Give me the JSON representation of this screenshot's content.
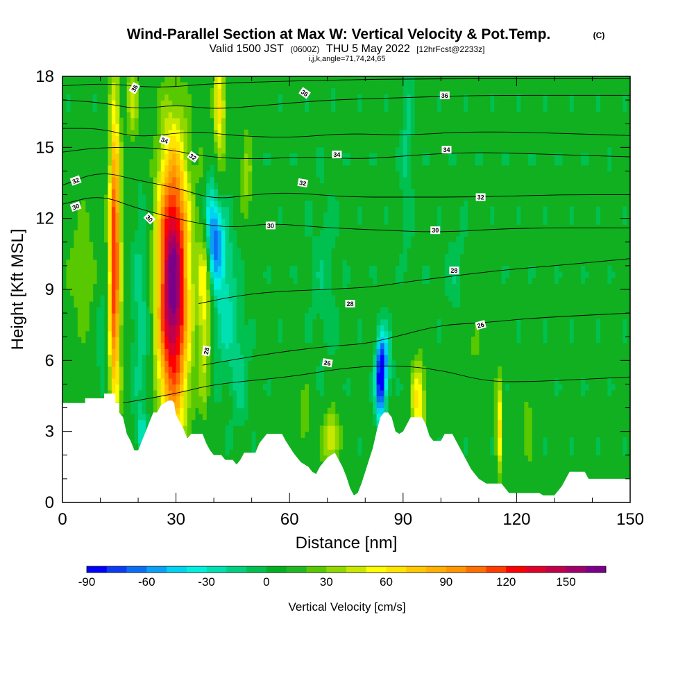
{
  "header": {
    "title": "Wind-Parallel Section at Max W: Vertical Velocity & Pot.Temp.",
    "title_tag": "(C)",
    "valid_prefix": "Valid 1500 JST",
    "valid_zulu": "(0600Z)",
    "valid_date": "THU 5 May 2022",
    "forecast_tag": "[12hrFcst@2233z]",
    "ijk_line": "i,j,k,angle=71,74,24,65"
  },
  "chart_data": {
    "type": "heatmap",
    "title": "Wind-Parallel Section at Max W: Vertical Velocity & Pot.Temp.",
    "xlabel": "Distance [nm]",
    "ylabel": "Height [Kft MSL]",
    "xlim": [
      0,
      150
    ],
    "ylim": [
      0,
      18
    ],
    "x_ticks": [
      0,
      30,
      60,
      90,
      120,
      150
    ],
    "x_tick_labels": [
      "0",
      "30",
      "60",
      "90",
      "120",
      "150"
    ],
    "y_ticks": [
      0,
      3,
      6,
      9,
      12,
      15,
      18
    ],
    "y_tick_labels": [
      "0",
      "3",
      "6",
      "9",
      "12",
      "15",
      "18"
    ],
    "colorbar": {
      "label": "Vertical Velocity [cm/s]",
      "range": [
        -90,
        170
      ],
      "step": 10,
      "tick_values": [
        -90,
        -60,
        -30,
        0,
        30,
        60,
        90,
        120,
        150
      ],
      "tick_labels": [
        "-90",
        "-60",
        "-30",
        "0",
        "30",
        "60",
        "90",
        "120",
        "150"
      ],
      "colors": [
        "#0000ff",
        "#0a3cf5",
        "#0a6ef5",
        "#0aa0f5",
        "#00d2f0",
        "#00f0e0",
        "#00e0b0",
        "#00d080",
        "#00c050",
        "#00b020",
        "#20b820",
        "#58c800",
        "#90d800",
        "#c8e800",
        "#ffff00",
        "#ffe400",
        "#ffc800",
        "#ffb000",
        "#ff9600",
        "#ff6e00",
        "#ff3c00",
        "#ff0000",
        "#e0002a",
        "#c0004a",
        "#a0006a",
        "#7a008a"
      ]
    },
    "background_w": 5,
    "terrain_kft": [
      [
        0,
        4.2
      ],
      [
        6,
        4.2
      ],
      [
        6,
        4.4
      ],
      [
        11,
        4.4
      ],
      [
        11,
        4.6
      ],
      [
        14,
        4.6
      ],
      [
        14,
        4.2
      ],
      [
        15,
        4.2
      ],
      [
        15,
        3.8
      ],
      [
        16,
        3.6
      ],
      [
        17,
        2.9
      ],
      [
        18,
        2.6
      ],
      [
        19,
        2.2
      ],
      [
        20,
        2.2
      ],
      [
        21,
        2.6
      ],
      [
        22,
        3.0
      ],
      [
        23,
        3.4
      ],
      [
        24,
        3.8
      ],
      [
        25,
        3.8
      ],
      [
        26,
        4.1
      ],
      [
        28,
        4.3
      ],
      [
        29,
        4.3
      ],
      [
        29.5,
        4.2
      ],
      [
        30,
        3.7
      ],
      [
        31,
        3.4
      ],
      [
        32,
        3.1
      ],
      [
        33,
        2.7
      ],
      [
        34,
        2.9
      ],
      [
        37,
        2.9
      ],
      [
        38,
        2.5
      ],
      [
        39,
        2.2
      ],
      [
        40,
        2.0
      ],
      [
        42,
        2.0
      ],
      [
        43,
        1.8
      ],
      [
        45,
        1.8
      ],
      [
        46,
        1.6
      ],
      [
        47,
        1.8
      ],
      [
        48,
        2.1
      ],
      [
        51,
        2.1
      ],
      [
        52,
        2.5
      ],
      [
        54,
        2.9
      ],
      [
        58,
        2.9
      ],
      [
        59,
        2.6
      ],
      [
        61,
        2.1
      ],
      [
        62,
        1.9
      ],
      [
        63,
        1.7
      ],
      [
        64,
        1.6
      ],
      [
        65,
        1.5
      ],
      [
        66,
        1.3
      ],
      [
        67,
        1.2
      ],
      [
        68,
        1.5
      ],
      [
        70,
        1.9
      ],
      [
        72,
        2.1
      ],
      [
        73,
        1.8
      ],
      [
        74,
        1.5
      ],
      [
        75,
        1.1
      ],
      [
        76,
        0.6
      ],
      [
        77,
        0.3
      ],
      [
        78,
        0.4
      ],
      [
        79,
        0.8
      ],
      [
        80,
        1.3
      ],
      [
        81,
        1.8
      ],
      [
        82,
        2.3
      ],
      [
        83,
        3.0
      ],
      [
        84,
        3.6
      ],
      [
        85,
        3.8
      ],
      [
        86,
        3.8
      ],
      [
        87,
        3.6
      ],
      [
        88,
        3.0
      ],
      [
        89,
        2.9
      ],
      [
        90,
        3.0
      ],
      [
        91,
        3.3
      ],
      [
        92,
        3.6
      ],
      [
        95,
        3.6
      ],
      [
        96,
        3.3
      ],
      [
        97,
        2.8
      ],
      [
        98,
        2.6
      ],
      [
        100,
        2.6
      ],
      [
        101,
        2.9
      ],
      [
        103,
        2.9
      ],
      [
        104,
        2.6
      ],
      [
        105,
        2.3
      ],
      [
        106,
        2.0
      ],
      [
        107,
        1.7
      ],
      [
        108,
        1.4
      ],
      [
        109,
        1.2
      ],
      [
        110,
        1.0
      ],
      [
        111,
        0.9
      ],
      [
        112,
        0.8
      ],
      [
        116,
        0.8
      ],
      [
        117,
        0.6
      ],
      [
        118,
        0.4
      ],
      [
        126,
        0.4
      ],
      [
        127,
        0.3
      ],
      [
        130,
        0.3
      ],
      [
        131,
        0.5
      ],
      [
        132,
        0.7
      ],
      [
        133,
        1.0
      ],
      [
        134,
        1.3
      ],
      [
        138,
        1.3
      ],
      [
        139,
        1.0
      ],
      [
        150,
        1.0
      ]
    ],
    "updrafts": [
      {
        "x": 13.8,
        "y": 10.2,
        "sx": 1.1,
        "sy": 4.8,
        "w": 118
      },
      {
        "x": 29.2,
        "y": 9.2,
        "sx": 3.0,
        "sy": 4.2,
        "w": 165
      },
      {
        "x": 37.5,
        "y": 9.0,
        "sx": 1.2,
        "sy": 3.5,
        "w": 50
      },
      {
        "x": 41.5,
        "y": 16.8,
        "sx": 1.1,
        "sy": 2.0,
        "w": 58
      },
      {
        "x": 18.5,
        "y": 17.0,
        "sx": 1.4,
        "sy": 1.5,
        "w": 35
      },
      {
        "x": 48.5,
        "y": 14.0,
        "sx": 1.3,
        "sy": 1.5,
        "w": 30
      },
      {
        "x": 5.5,
        "y": 9.8,
        "sx": 3.5,
        "sy": 2.5,
        "w": 22
      },
      {
        "x": 71.0,
        "y": 2.7,
        "sx": 1.7,
        "sy": 0.9,
        "w": 48
      },
      {
        "x": 94.0,
        "y": 4.2,
        "sx": 1.4,
        "sy": 1.4,
        "w": 58
      },
      {
        "x": 115.3,
        "y": 3.2,
        "sx": 0.6,
        "sy": 1.6,
        "w": 58
      },
      {
        "x": 123.0,
        "y": 3.4,
        "sx": 1.1,
        "sy": 1.5,
        "w": 22
      },
      {
        "x": 64.0,
        "y": 3.4,
        "sx": 1.6,
        "sy": 1.2,
        "w": 22
      },
      {
        "x": 108.0,
        "y": 6.5,
        "sx": 3.0,
        "sy": 1.5,
        "w": 15
      }
    ],
    "downdrafts": [
      {
        "x": 21.0,
        "y": 8.0,
        "sx": 1.9,
        "sy": 3.6,
        "w": -22
      },
      {
        "x": 10.0,
        "y": 8.0,
        "sx": 1.0,
        "sy": 2.8,
        "w": -16
      },
      {
        "x": 40.5,
        "y": 11.0,
        "sx": 1.5,
        "sy": 1.2,
        "w": -62
      },
      {
        "x": 38.5,
        "y": 12.3,
        "sx": 1.3,
        "sy": 1.2,
        "w": -45
      },
      {
        "x": 43.0,
        "y": 8.5,
        "sx": 2.2,
        "sy": 2.2,
        "w": -30
      },
      {
        "x": 47.0,
        "y": 5.5,
        "sx": 1.6,
        "sy": 1.6,
        "w": -18
      },
      {
        "x": 84.0,
        "y": 5.0,
        "sx": 0.9,
        "sy": 1.2,
        "w": -85
      },
      {
        "x": 85.0,
        "y": 6.0,
        "sx": 1.2,
        "sy": 1.0,
        "w": -45
      },
      {
        "x": 91.0,
        "y": 15.0,
        "sx": 1.0,
        "sy": 3.0,
        "w": -18
      },
      {
        "x": 69.0,
        "y": 9.5,
        "sx": 2.5,
        "sy": 2.5,
        "w": -12
      },
      {
        "x": 104.0,
        "y": 9.5,
        "sx": 2.0,
        "sy": 1.5,
        "w": -12
      },
      {
        "x": 21.0,
        "y": 2.9,
        "sx": 0.9,
        "sy": 0.6,
        "w": -30
      }
    ],
    "theta_contours": [
      {
        "label": "26",
        "points": [
          [
            16,
            4.2
          ],
          [
            30,
            4.6
          ],
          [
            40,
            5.0
          ],
          [
            60,
            5.3
          ],
          [
            75,
            5.7
          ],
          [
            88,
            5.8
          ],
          [
            100,
            5.6
          ],
          [
            112,
            5.1
          ],
          [
            125,
            5.1
          ],
          [
            150,
            5.3
          ]
        ]
      },
      {
        "label": "26",
        "points": [
          [
            37,
            5.8
          ],
          [
            55,
            6.3
          ],
          [
            70,
            6.6
          ],
          [
            80,
            6.7
          ],
          [
            88,
            7.0
          ],
          [
            100,
            7.5
          ],
          [
            112,
            7.6
          ],
          [
            125,
            7.8
          ],
          [
            150,
            8.0
          ]
        ]
      },
      {
        "label": "28",
        "points": [
          [
            36,
            8.4
          ],
          [
            45,
            8.7
          ],
          [
            55,
            8.9
          ],
          [
            70,
            9.0
          ],
          [
            82,
            9.1
          ],
          [
            90,
            9.3
          ],
          [
            100,
            9.5
          ],
          [
            115,
            9.8
          ],
          [
            130,
            10.0
          ],
          [
            150,
            10.3
          ]
        ]
      },
      {
        "label": "30",
        "points": [
          [
            0,
            12.6
          ],
          [
            10,
            13.0
          ],
          [
            20,
            12.4
          ],
          [
            35,
            11.8
          ],
          [
            45,
            11.6
          ],
          [
            55,
            11.8
          ],
          [
            70,
            11.6
          ],
          [
            85,
            11.5
          ],
          [
            100,
            11.4
          ],
          [
            120,
            11.6
          ],
          [
            150,
            11.6
          ]
        ]
      },
      {
        "label": "32",
        "points": [
          [
            0,
            13.4
          ],
          [
            10,
            14.0
          ],
          [
            20,
            13.6
          ],
          [
            30,
            13.3
          ],
          [
            40,
            12.8
          ],
          [
            50,
            13.0
          ],
          [
            60,
            13.1
          ],
          [
            75,
            12.9
          ],
          [
            90,
            12.9
          ],
          [
            110,
            12.9
          ],
          [
            130,
            13.0
          ],
          [
            150,
            13.0
          ]
        ]
      },
      {
        "label": "34",
        "points": [
          [
            0,
            14.8
          ],
          [
            10,
            15.0
          ],
          [
            25,
            15.0
          ],
          [
            38,
            14.6
          ],
          [
            50,
            14.5
          ],
          [
            65,
            14.6
          ],
          [
            80,
            14.5
          ],
          [
            95,
            14.7
          ],
          [
            110,
            14.8
          ],
          [
            130,
            14.7
          ],
          [
            150,
            14.6
          ]
        ]
      },
      {
        "label": "34",
        "points": [
          [
            0,
            15.8
          ],
          [
            10,
            15.8
          ],
          [
            20,
            15.4
          ],
          [
            35,
            15.7
          ],
          [
            45,
            15.5
          ],
          [
            60,
            15.4
          ],
          [
            75,
            15.6
          ],
          [
            90,
            15.5
          ],
          [
            110,
            15.7
          ],
          [
            150,
            15.5
          ]
        ]
      },
      {
        "label": "36",
        "points": [
          [
            0,
            17.0
          ],
          [
            10,
            16.9
          ],
          [
            20,
            16.6
          ],
          [
            30,
            16.8
          ],
          [
            40,
            16.6
          ],
          [
            55,
            16.8
          ],
          [
            70,
            17.0
          ],
          [
            90,
            17.1
          ],
          [
            110,
            17.2
          ],
          [
            150,
            17.2
          ]
        ]
      },
      {
        "label": "36",
        "points": [
          [
            0,
            17.6
          ],
          [
            12,
            17.7
          ],
          [
            25,
            17.5
          ],
          [
            40,
            17.7
          ],
          [
            60,
            17.8
          ],
          [
            90,
            17.9
          ],
          [
            150,
            17.9
          ]
        ]
      }
    ],
    "contour_labels": [
      {
        "text": "36",
        "x": 19.0,
        "y": 17.5,
        "rot": -60
      },
      {
        "text": "36",
        "x": 64.0,
        "y": 17.3,
        "rot": 35
      },
      {
        "text": "36",
        "x": 101.0,
        "y": 17.2,
        "rot": 0
      },
      {
        "text": "34",
        "x": 27.0,
        "y": 15.3,
        "rot": 20
      },
      {
        "text": "34",
        "x": 72.5,
        "y": 14.7,
        "rot": 0
      },
      {
        "text": "34",
        "x": 101.5,
        "y": 14.9,
        "rot": 0
      },
      {
        "text": "32",
        "x": 3.5,
        "y": 13.6,
        "rot": -20
      },
      {
        "text": "32",
        "x": 34.5,
        "y": 14.6,
        "rot": 35
      },
      {
        "text": "32",
        "x": 63.5,
        "y": 13.5,
        "rot": 10
      },
      {
        "text": "32",
        "x": 110.5,
        "y": 12.9,
        "rot": 0
      },
      {
        "text": "30",
        "x": 3.5,
        "y": 12.5,
        "rot": -20
      },
      {
        "text": "30",
        "x": 23.0,
        "y": 12.0,
        "rot": 45
      },
      {
        "text": "30",
        "x": 55.0,
        "y": 11.7,
        "rot": 0
      },
      {
        "text": "30",
        "x": 98.5,
        "y": 11.5,
        "rot": 0
      },
      {
        "text": "28",
        "x": 103.5,
        "y": 9.8,
        "rot": 0
      },
      {
        "text": "28",
        "x": 76.0,
        "y": 8.4,
        "rot": 0
      },
      {
        "text": "28",
        "x": 38.0,
        "y": 6.4,
        "rot": -80
      },
      {
        "text": "26",
        "x": 70.0,
        "y": 5.9,
        "rot": 10
      },
      {
        "text": "26",
        "x": 110.5,
        "y": 7.5,
        "rot": -15
      }
    ]
  }
}
